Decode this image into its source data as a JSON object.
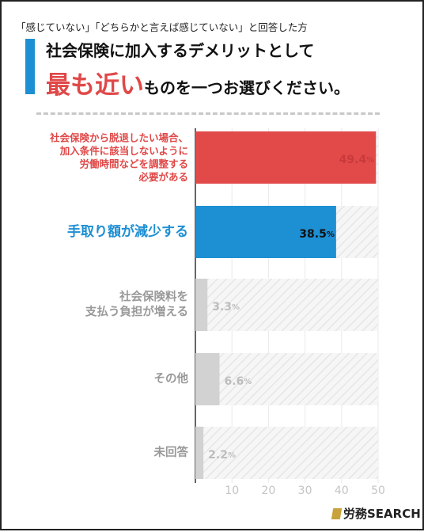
{
  "header": {
    "condition_note": "「感じていない」「どちらかと言えば感じていない」と回答した方",
    "question_line1": "社会保険に加入するデメリットとして",
    "question_emphasis": "最も近い",
    "question_rest": "ものを一つお選びください。"
  },
  "chart_data": {
    "type": "bar",
    "orientation": "horizontal",
    "categories": [
      "社会保険から脱退したい場合、加入条件に該当しないように労働時間などを調整する必要がある",
      "手取り額が減少する",
      "社会保険料を支払う負担が増える",
      "その他",
      "未回答"
    ],
    "values": [
      49.4,
      38.5,
      3.3,
      6.6,
      2.2
    ],
    "value_labels": [
      "49.4",
      "38.5",
      "3.3",
      "6.6",
      "2.2"
    ],
    "unit": "%",
    "xlim": [
      0,
      50
    ],
    "xticks": [
      "10",
      "20",
      "30",
      "40",
      "50"
    ],
    "category_colors": [
      "#e04848",
      "#1d8fd3",
      "#999999",
      "#999999",
      "#999999"
    ],
    "bar_colors": [
      "#e24a4a",
      "#1d8fd3",
      "#d2d2d2",
      "#d2d2d2",
      "#d2d2d2"
    ],
    "value_label_colors": [
      "#c93a3a",
      "#111111",
      "#bdbdbd",
      "#bdbdbd",
      "#bdbdbd"
    ],
    "grid": true
  },
  "logo": {
    "text": "労務SEARCH",
    "accent": "#c9a23c"
  }
}
